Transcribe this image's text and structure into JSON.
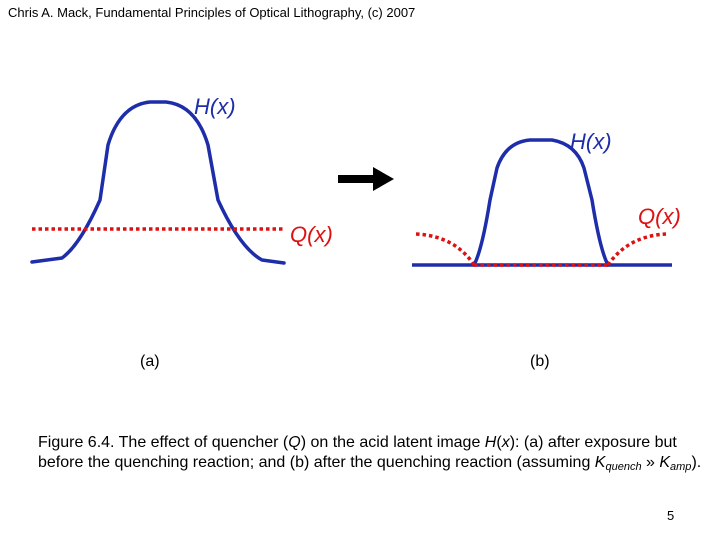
{
  "header": {
    "text": "Chris A. Mack, Fundamental Principles of Optical Lithography, (c) 2007"
  },
  "colors": {
    "h_curve": "#1e2eaa",
    "q_curve": "#dd1111",
    "arrow": "#000000"
  },
  "panel_a": {
    "label": "(a)",
    "h_label": "H(x)",
    "q_label": "Q(x)"
  },
  "panel_b": {
    "label": "(b)",
    "h_label": "H(x)",
    "q_label": "Q(x)"
  },
  "caption": {
    "part1": "Figure 6.4.  The effect of quencher (",
    "q": "Q",
    "part2": ") on the acid latent image ",
    "h": "H",
    "paren_open": "(",
    "x": "x",
    "part3": "): (a) after exposure but before the quenching reaction; and (b) after the quenching reaction (assuming ",
    "k1": "K",
    "k1_sub": "quench",
    "part4": " » ",
    "k2": "K",
    "k2_sub": "amp",
    "part5": ")."
  },
  "page_number": "5"
}
